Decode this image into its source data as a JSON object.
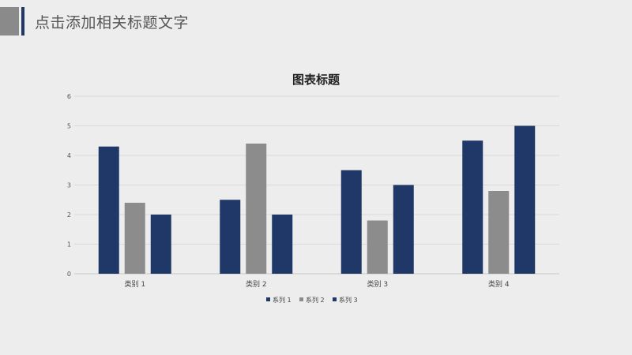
{
  "header": {
    "title": "点击添加相关标题文字"
  },
  "colors": {
    "accent": "#1f3868",
    "gray": "#8a8a8a",
    "background": "#ededed"
  },
  "chart_data": {
    "type": "bar",
    "title": "图表标题",
    "categories": [
      "类别 1",
      "类别 2",
      "类别 3",
      "类别 4"
    ],
    "series": [
      {
        "name": "系列 1",
        "values": [
          4.3,
          2.5,
          3.5,
          4.5
        ],
        "color": "#1f3868"
      },
      {
        "name": "系列 2",
        "values": [
          2.4,
          4.4,
          1.8,
          2.8
        ],
        "color": "#8c8c8c"
      },
      {
        "name": "系列 3",
        "values": [
          2.0,
          2.0,
          3.0,
          5.0
        ],
        "color": "#1f3868"
      }
    ],
    "yticks": [
      "0",
      "1",
      "2",
      "3",
      "4",
      "5",
      "6"
    ],
    "ylim": [
      0,
      6
    ],
    "grid": true,
    "legend_position": "bottom"
  }
}
